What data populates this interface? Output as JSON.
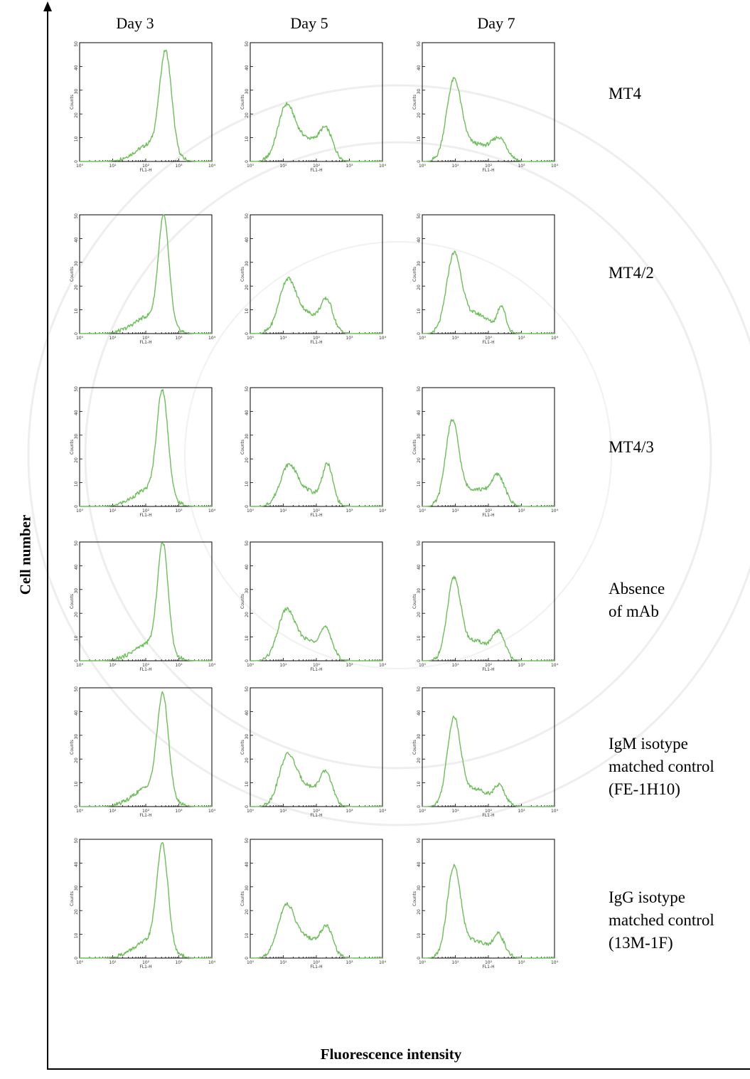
{
  "figure": {
    "column_headers": [
      "Day 3",
      "Day 5",
      "Day 7"
    ],
    "row_labels": [
      "MT4",
      "MT4/2",
      "MT4/3",
      "Absence\nof mAb",
      "IgM isotype\nmatched control\n(FE-1H10)",
      "IgG isotype\nmatched control\n(13M-1F)"
    ],
    "x_axis_title": "Fluorescence intensity",
    "y_axis_title": "Cell number"
  },
  "colors": {
    "histogram": "#6dbf5a",
    "axis": "#000000"
  },
  "chart_data": {
    "type": "line",
    "panel_xlabel": "FL1-H",
    "panel_ylabel": "Counts",
    "x_scale": "log",
    "xlim": [
      1,
      10000
    ],
    "ylim": [
      0,
      50
    ],
    "x_ticks": [
      "10⁰",
      "10¹",
      "10²",
      "10³",
      "10⁴"
    ],
    "y_ticks": [
      "0",
      "10",
      "20",
      "30",
      "40",
      "50"
    ],
    "panels": [
      {
        "row": "MT4",
        "day": "Day 3",
        "peaks": [
          {
            "x": 400,
            "height": 42,
            "width": 0.18
          }
        ],
        "shoulder": {
          "x": 150,
          "height": 7,
          "width": 0.45
        },
        "baseline": 1
      },
      {
        "row": "MT4",
        "day": "Day 5",
        "peaks": [
          {
            "x": 12,
            "height": 21,
            "width": 0.25
          },
          {
            "x": 200,
            "height": 11,
            "width": 0.2
          }
        ],
        "shoulder": {
          "x": 50,
          "height": 9,
          "width": 0.4
        },
        "baseline": 1
      },
      {
        "row": "MT4",
        "day": "Day 7",
        "peaks": [
          {
            "x": 9,
            "height": 32,
            "width": 0.22
          },
          {
            "x": 220,
            "height": 8,
            "width": 0.22
          }
        ],
        "shoulder": {
          "x": 40,
          "height": 7,
          "width": 0.45
        },
        "baseline": 1
      },
      {
        "row": "MT4/2",
        "day": "Day 3",
        "peaks": [
          {
            "x": 350,
            "height": 45,
            "width": 0.16
          }
        ],
        "shoulder": {
          "x": 130,
          "height": 7,
          "width": 0.45
        },
        "baseline": 1
      },
      {
        "row": "MT4/2",
        "day": "Day 5",
        "peaks": [
          {
            "x": 13,
            "height": 20,
            "width": 0.25
          },
          {
            "x": 210,
            "height": 12,
            "width": 0.18
          }
        ],
        "shoulder": {
          "x": 50,
          "height": 8,
          "width": 0.4
        },
        "baseline": 1
      },
      {
        "row": "MT4/2",
        "day": "Day 7",
        "peaks": [
          {
            "x": 9,
            "height": 31,
            "width": 0.22
          },
          {
            "x": 250,
            "height": 10,
            "width": 0.12
          }
        ],
        "shoulder": {
          "x": 40,
          "height": 8,
          "width": 0.45
        },
        "baseline": 1
      },
      {
        "row": "MT4/3",
        "day": "Day 3",
        "peaks": [
          {
            "x": 320,
            "height": 44,
            "width": 0.17
          }
        ],
        "shoulder": {
          "x": 130,
          "height": 7,
          "width": 0.45
        },
        "baseline": 1
      },
      {
        "row": "MT4/3",
        "day": "Day 5",
        "peaks": [
          {
            "x": 14,
            "height": 15,
            "width": 0.25
          },
          {
            "x": 220,
            "height": 16,
            "width": 0.16
          }
        ],
        "shoulder": {
          "x": 50,
          "height": 6,
          "width": 0.4
        },
        "baseline": 1
      },
      {
        "row": "MT4/3",
        "day": "Day 7",
        "peaks": [
          {
            "x": 8,
            "height": 34,
            "width": 0.2
          },
          {
            "x": 200,
            "height": 11,
            "width": 0.2
          }
        ],
        "shoulder": {
          "x": 40,
          "height": 7,
          "width": 0.45
        },
        "baseline": 1
      },
      {
        "row": "Absence of mAb",
        "day": "Day 3",
        "peaks": [
          {
            "x": 330,
            "height": 45,
            "width": 0.16
          }
        ],
        "shoulder": {
          "x": 130,
          "height": 7,
          "width": 0.45
        },
        "baseline": 1
      },
      {
        "row": "Absence of mAb",
        "day": "Day 5",
        "peaks": [
          {
            "x": 12,
            "height": 19,
            "width": 0.25
          },
          {
            "x": 200,
            "height": 11,
            "width": 0.18
          }
        ],
        "shoulder": {
          "x": 50,
          "height": 8,
          "width": 0.4
        },
        "baseline": 1
      },
      {
        "row": "Absence of mAb",
        "day": "Day 7",
        "peaks": [
          {
            "x": 9,
            "height": 32,
            "width": 0.2
          },
          {
            "x": 210,
            "height": 10,
            "width": 0.18
          }
        ],
        "shoulder": {
          "x": 40,
          "height": 8,
          "width": 0.45
        },
        "baseline": 1
      },
      {
        "row": "IgM isotype matched control (FE-1H10)",
        "day": "Day 3",
        "peaks": [
          {
            "x": 330,
            "height": 42,
            "width": 0.17
          }
        ],
        "shoulder": {
          "x": 130,
          "height": 8,
          "width": 0.45
        },
        "baseline": 1
      },
      {
        "row": "IgM isotype matched control (FE-1H10)",
        "day": "Day 5",
        "peaks": [
          {
            "x": 13,
            "height": 19,
            "width": 0.25
          },
          {
            "x": 200,
            "height": 12,
            "width": 0.18
          }
        ],
        "shoulder": {
          "x": 50,
          "height": 8,
          "width": 0.4
        },
        "baseline": 1
      },
      {
        "row": "IgM isotype matched control (FE-1H10)",
        "day": "Day 7",
        "peaks": [
          {
            "x": 9,
            "height": 35,
            "width": 0.2
          },
          {
            "x": 220,
            "height": 7,
            "width": 0.16
          }
        ],
        "shoulder": {
          "x": 40,
          "height": 7,
          "width": 0.45
        },
        "baseline": 1
      },
      {
        "row": "IgG isotype matched control (13M-1F)",
        "day": "Day 3",
        "peaks": [
          {
            "x": 320,
            "height": 43,
            "width": 0.17
          }
        ],
        "shoulder": {
          "x": 130,
          "height": 7,
          "width": 0.45
        },
        "baseline": 1
      },
      {
        "row": "IgG isotype matched control (13M-1F)",
        "day": "Day 5",
        "peaks": [
          {
            "x": 12,
            "height": 20,
            "width": 0.25
          },
          {
            "x": 210,
            "height": 11,
            "width": 0.18
          }
        ],
        "shoulder": {
          "x": 50,
          "height": 8,
          "width": 0.4
        },
        "baseline": 1
      },
      {
        "row": "IgG isotype matched control (13M-1F)",
        "day": "Day 7",
        "peaks": [
          {
            "x": 9,
            "height": 36,
            "width": 0.2
          },
          {
            "x": 210,
            "height": 8,
            "width": 0.16
          }
        ],
        "shoulder": {
          "x": 40,
          "height": 7,
          "width": 0.45
        },
        "baseline": 1
      }
    ]
  }
}
